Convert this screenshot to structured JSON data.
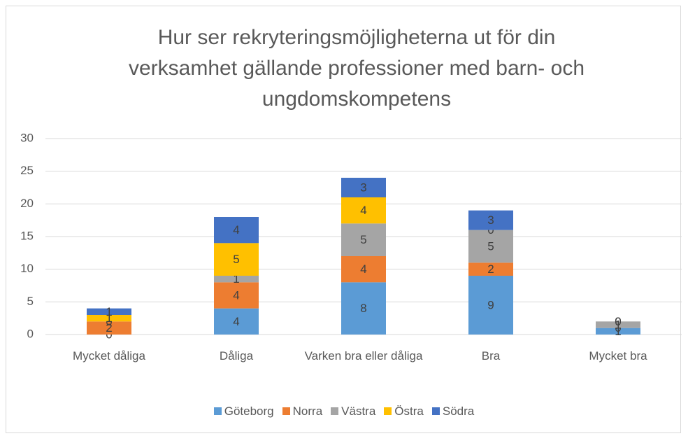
{
  "chart_data": {
    "type": "stacked_bar",
    "title": "Hur ser rekryteringsmöjligheterna ut för din verksamhet gällande professioner med barn- och ungdomskompetens",
    "categories": [
      "Mycket dåliga",
      "Dåliga",
      "Varken bra eller dåliga",
      "Bra",
      "Mycket bra"
    ],
    "series": [
      {
        "name": "Göteborg",
        "color": "#5b9bd5",
        "values": [
          0,
          4,
          8,
          9,
          1
        ]
      },
      {
        "name": "Norra",
        "color": "#ed7d31",
        "values": [
          2,
          4,
          4,
          2,
          0
        ]
      },
      {
        "name": "Västra",
        "color": "#a5a5a5",
        "values": [
          0,
          1,
          5,
          5,
          1
        ]
      },
      {
        "name": "Östra",
        "color": "#ffc000",
        "values": [
          1,
          5,
          4,
          0,
          0
        ]
      },
      {
        "name": "Södra",
        "color": "#4472c4",
        "values": [
          1,
          4,
          3,
          3,
          0
        ]
      }
    ],
    "ylim": [
      0,
      30
    ],
    "yticks": [
      0,
      5,
      10,
      15,
      20,
      25,
      30
    ],
    "grid": true,
    "legend": "bottom"
  }
}
